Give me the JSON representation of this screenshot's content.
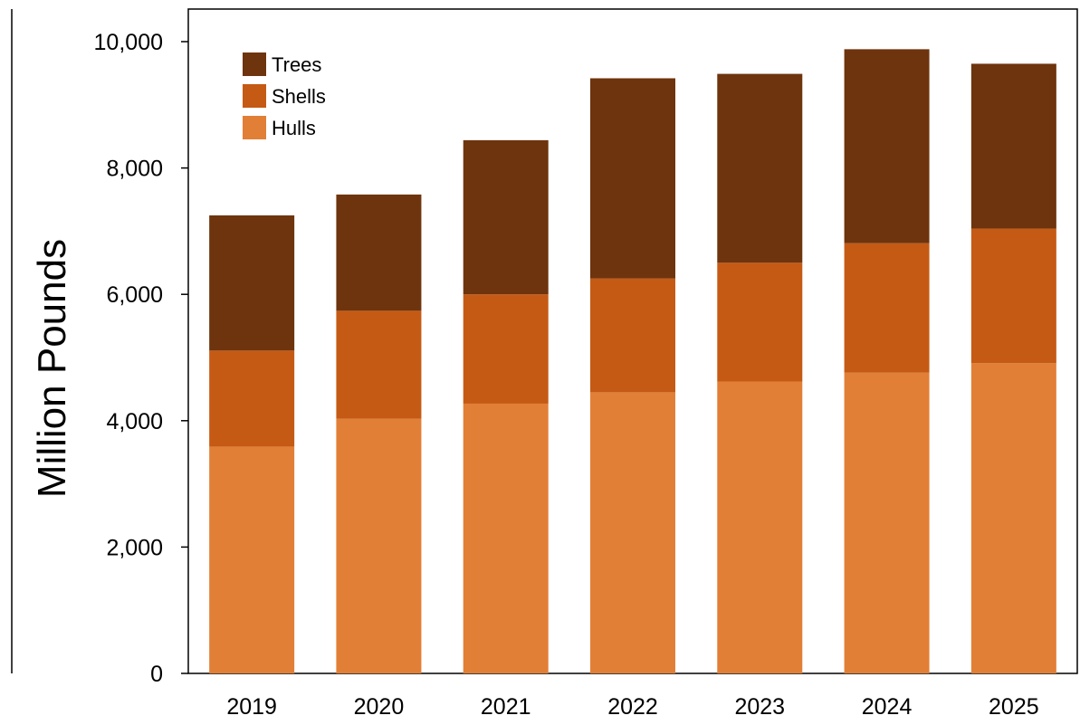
{
  "chart_data": {
    "type": "bar",
    "stacked": true,
    "categories": [
      "2019",
      "2020",
      "2021",
      "2022",
      "2023",
      "2024",
      "2025"
    ],
    "series": [
      {
        "name": "Hulls",
        "color": "#E27F36",
        "values": [
          3590,
          4030,
          4270,
          4450,
          4620,
          4760,
          4910
        ]
      },
      {
        "name": "Shells",
        "color": "#C55A14",
        "values": [
          1520,
          1710,
          1730,
          1800,
          1880,
          2050,
          2130
        ]
      },
      {
        "name": "Trees",
        "color": "#6E340D",
        "values": [
          2140,
          1840,
          2440,
          3170,
          2990,
          3070,
          2610
        ]
      }
    ],
    "legend_order": [
      "Trees",
      "Shells",
      "Hulls"
    ],
    "legend_position": "top-left",
    "title": "",
    "xlabel": "",
    "ylabel": "Million Pounds",
    "ylim": [
      0,
      10000
    ],
    "yticks": [
      "0",
      "2,000",
      "4,000",
      "6,000",
      "8,000",
      "10,000"
    ],
    "grid": false
  }
}
